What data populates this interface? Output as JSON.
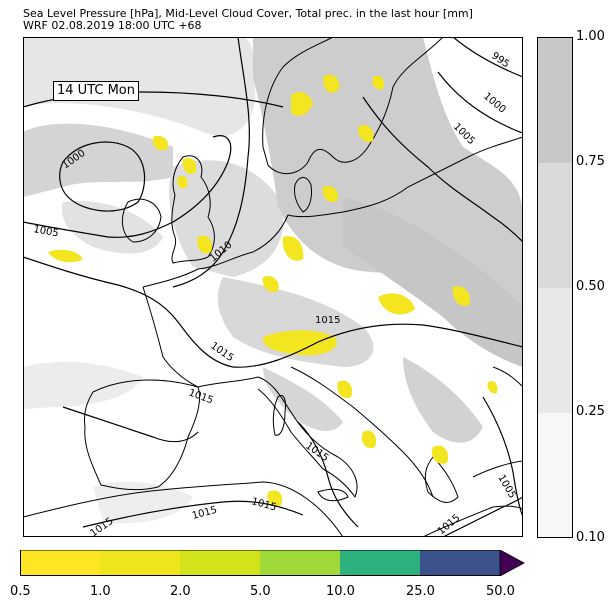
{
  "header": {
    "title_line1": "Sea Level Pressure [hPa], Mid-Level Cloud Cover, Total prec. in the last hour [mm]",
    "title_line2": "WRF 02.08.2019 18:00 UTC +68"
  },
  "map": {
    "time_label": "14 UTC Mon",
    "isobar_labels": [
      "995",
      "1000",
      "1005",
      "1010",
      "1015"
    ]
  },
  "cloud_colorbar": {
    "ticks": [
      "1.00",
      "0.75",
      "0.50",
      "0.25",
      "0.10"
    ],
    "levels": [
      0.1,
      0.25,
      0.5,
      0.75,
      1.0
    ],
    "colors": [
      "#f7f7f7",
      "#e8e8e8",
      "#dadada",
      "#c8c8c8"
    ]
  },
  "precip_colorbar": {
    "ticks": [
      "0.5",
      "1.0",
      "2.0",
      "5.0",
      "10.0",
      "25.0",
      "50.0"
    ],
    "colors": [
      "#fde725",
      "#efe51c",
      "#d2e21b",
      "#a0da39",
      "#2db27d",
      "#3b528b"
    ],
    "extend_color": "#440154"
  }
}
